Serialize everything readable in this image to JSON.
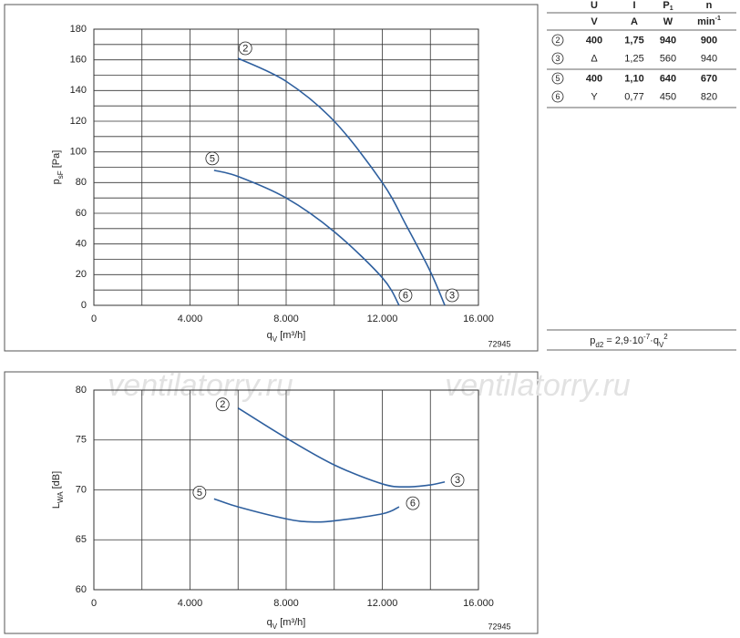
{
  "chart_data": [
    {
      "type": "line",
      "ylabel": {
        "text": "p",
        "sub": "sF",
        "unit": " [Pa]"
      },
      "xlabel": {
        "text": "q",
        "sub": "V",
        "unit": " [m³/h]"
      },
      "code": "72945",
      "xlim": [
        0,
        16000
      ],
      "xticks": [
        0,
        {
          "value": 4000,
          "label": "4.000"
        },
        {
          "value": 8000,
          "label": "8.000"
        },
        {
          "value": 12000,
          "label": "12.000"
        },
        {
          "value": 16000,
          "label": "16.000"
        }
      ],
      "ylim": [
        0,
        180
      ],
      "yticks": [
        0,
        20,
        40,
        60,
        80,
        100,
        120,
        140,
        160,
        180
      ],
      "x_minor_grid": true,
      "y_minor_grid": true,
      "series": [
        {
          "start_label": "2",
          "end_label": "3",
          "color": "#2e5f9e",
          "x": [
            6000,
            8000,
            10000,
            12000,
            13000,
            14000,
            14600
          ],
          "values": [
            161,
            146,
            120,
            80,
            52,
            22,
            0
          ]
        },
        {
          "start_label": "5",
          "end_label": "6",
          "color": "#2e5f9e",
          "x": [
            5000,
            6000,
            8000,
            10000,
            12000,
            12700
          ],
          "values": [
            88,
            84,
            70,
            48,
            18,
            0
          ]
        }
      ]
    },
    {
      "type": "line",
      "ylabel": {
        "text": "L",
        "sub": "WA",
        "unit": " [dB]"
      },
      "xlabel": {
        "text": "q",
        "sub": "V",
        "unit": " [m³/h]"
      },
      "code": "72945",
      "xlim": [
        0,
        16000
      ],
      "xticks": [
        0,
        {
          "value": 4000,
          "label": "4.000"
        },
        {
          "value": 8000,
          "label": "8.000"
        },
        {
          "value": 12000,
          "label": "12.000"
        },
        {
          "value": 16000,
          "label": "16.000"
        }
      ],
      "ylim": [
        60,
        80
      ],
      "yticks": [
        60,
        65,
        70,
        75,
        80
      ],
      "x_minor_grid": true,
      "y_minor_grid": false,
      "series": [
        {
          "start_label": "2",
          "end_label": "3",
          "color": "#2e5f9e",
          "x": [
            6000,
            8000,
            10000,
            12000,
            13000,
            14000,
            14600
          ],
          "values": [
            78.2,
            75.2,
            72.5,
            70.6,
            70.3,
            70.5,
            70.8
          ]
        },
        {
          "start_label": "5",
          "end_label": "6",
          "color": "#2e5f9e",
          "x": [
            5000,
            6000,
            8000,
            9000,
            10000,
            12000,
            12700
          ],
          "values": [
            69.1,
            68.3,
            67.1,
            66.8,
            66.9,
            67.6,
            68.3
          ]
        }
      ]
    }
  ],
  "watermark": "ventilatorry.ru",
  "table": {
    "header": [
      [
        {
          "text": "U"
        },
        {
          "text": "I"
        },
        {
          "text": "P",
          "sub": "1"
        },
        {
          "text": "n"
        }
      ],
      [
        {
          "text": "V"
        },
        {
          "text": "A"
        },
        {
          "text": "W"
        },
        {
          "text": "min",
          "sup": "-1"
        }
      ]
    ],
    "rows": [
      {
        "cells": [
          "2",
          "400",
          "1,75",
          "940",
          "900"
        ],
        "bold": true
      },
      {
        "cells": [
          "3",
          "Δ",
          "1,25",
          "560",
          "940"
        ],
        "bold": false
      },
      {
        "cells": [
          "5",
          "400",
          "1,10",
          "640",
          "670"
        ],
        "bold": true
      },
      {
        "cells": [
          "6",
          "Y",
          "0,77",
          "450",
          "820"
        ],
        "bold": false
      }
    ]
  },
  "formula": [
    {
      "text": "p"
    },
    {
      "text": "d2",
      "pos": "sub"
    },
    {
      "text": " = 2,9·10"
    },
    {
      "text": "-7",
      "pos": "sup"
    },
    {
      "text": "·q"
    },
    {
      "text": "V",
      "pos": "sub"
    },
    {
      "text": "2",
      "pos": "sup"
    }
  ]
}
